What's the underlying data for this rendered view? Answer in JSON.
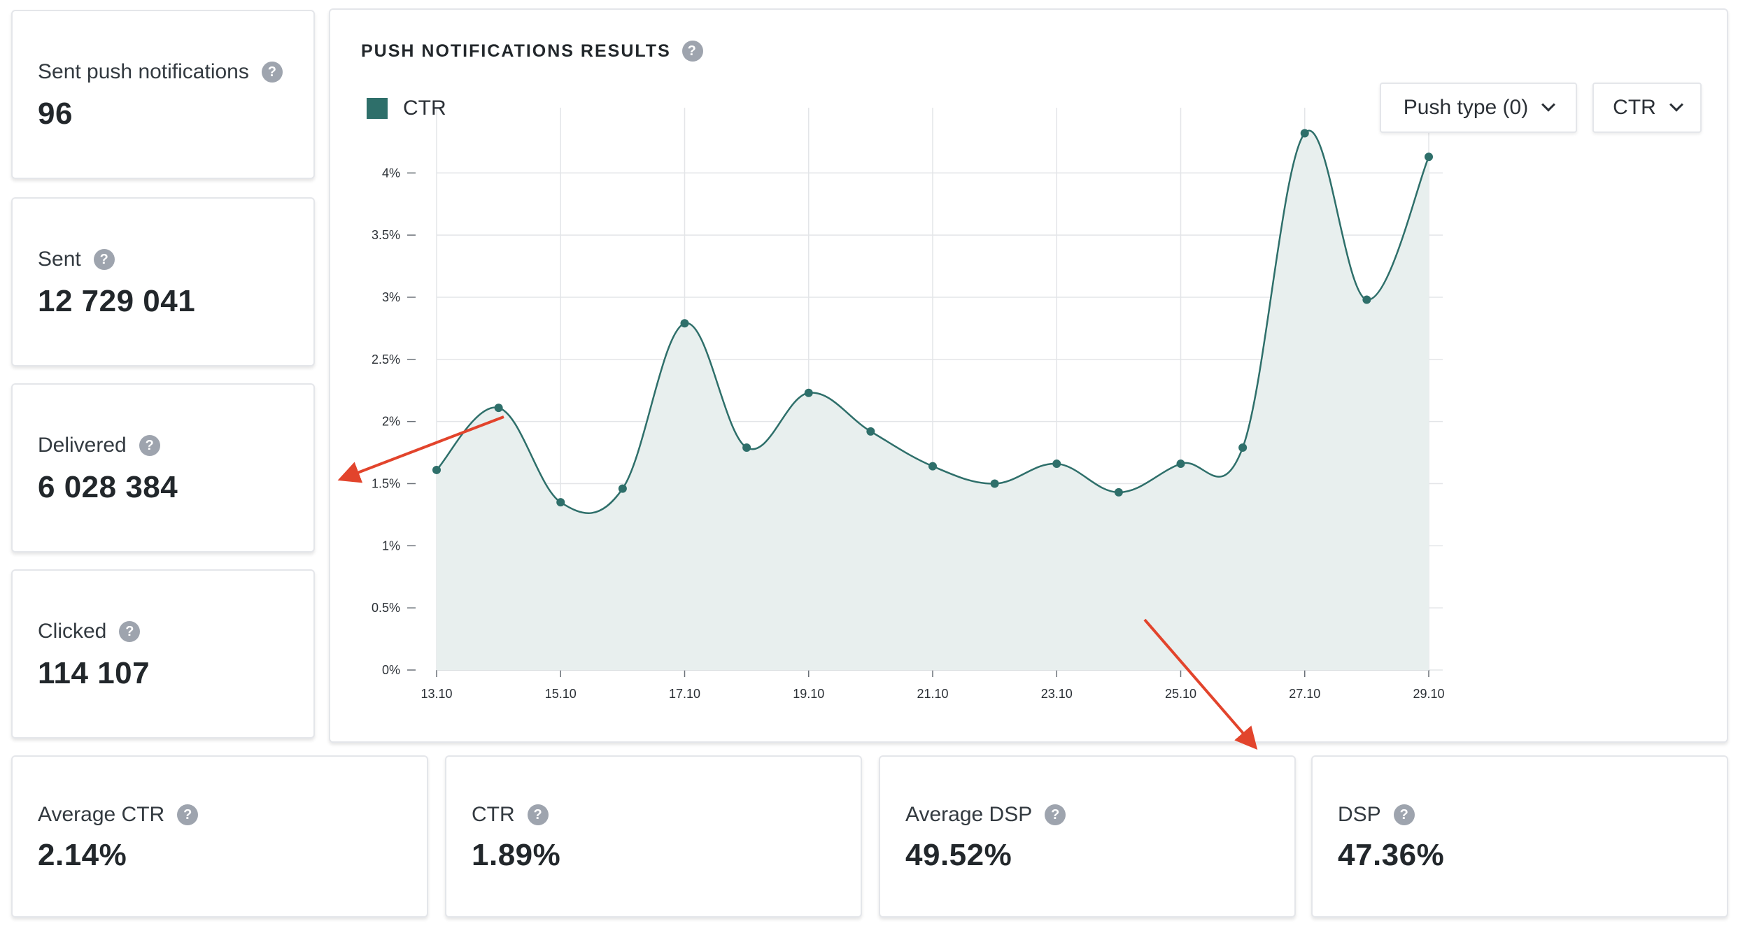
{
  "stats_left": [
    {
      "label": "Sent push notifications",
      "value": "96"
    },
    {
      "label": "Sent",
      "value": "12 729 041"
    },
    {
      "label": "Delivered",
      "value": "6 028 384"
    },
    {
      "label": "Clicked",
      "value": "114 107"
    }
  ],
  "stats_bottom": [
    {
      "label": "Average CTR",
      "value": "2.14%"
    },
    {
      "label": "CTR",
      "value": "1.89%"
    },
    {
      "label": "Average DSP",
      "value": "49.52%"
    },
    {
      "label": "DSP",
      "value": "47.36%"
    }
  ],
  "panel": {
    "title": "PUSH NOTIFICATIONS RESULTS",
    "legend_label": "CTR",
    "dropdown_push_type": "Push type (0)",
    "dropdown_metric": "CTR"
  },
  "help_glyph": "?",
  "colors": {
    "series": "#2e6f6a",
    "area_fill": "#e8efee",
    "help_icon": "#9ea4ae",
    "annotation_arrow": "#e2442c"
  },
  "chart_data": {
    "type": "area",
    "x": [
      "13.10",
      "14.10",
      "15.10",
      "16.10",
      "17.10",
      "18.10",
      "19.10",
      "20.10",
      "21.10",
      "22.10",
      "23.10",
      "24.10",
      "25.10",
      "26.10",
      "27.10",
      "28.10",
      "29.10"
    ],
    "x_tick_labels": [
      "13.10",
      "15.10",
      "17.10",
      "19.10",
      "21.10",
      "23.10",
      "25.10",
      "27.10",
      "29.10"
    ],
    "series": [
      {
        "name": "CTR",
        "values": [
          1.61,
          2.11,
          1.35,
          1.46,
          2.79,
          1.79,
          2.23,
          1.92,
          1.64,
          1.5,
          1.66,
          1.43,
          1.66,
          1.79,
          4.32,
          2.98,
          4.13
        ]
      }
    ],
    "y_ticks": [
      "0%",
      "0.5%",
      "1%",
      "1.5%",
      "2%",
      "2.5%",
      "3%",
      "3.5%",
      "4%"
    ],
    "ylim": [
      0,
      4.3
    ],
    "grid": true,
    "title": "PUSH NOTIFICATIONS RESULTS",
    "xlabel": "",
    "ylabel": ""
  }
}
